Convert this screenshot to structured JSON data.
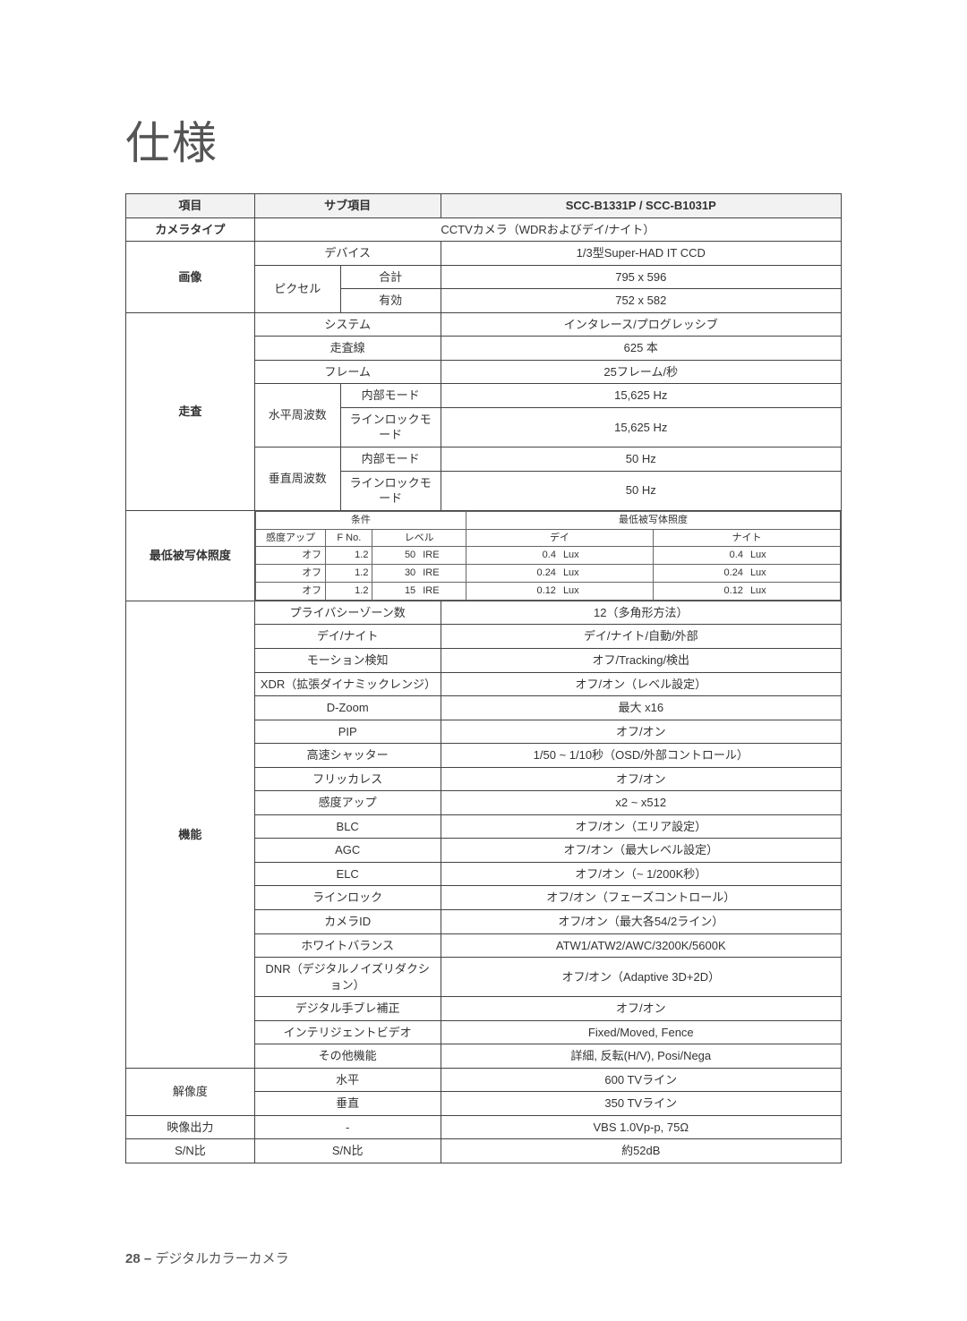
{
  "title": "仕様",
  "footer_page": "28 –",
  "footer_text": "デジタルカラーカメラ",
  "header": {
    "item": "項目",
    "sub_item": "サブ項目",
    "model": "SCC-B1331P / SCC-B1031P"
  },
  "col_widths": {
    "col1": "18%",
    "col2": "12%",
    "col3": "14%",
    "col4": "56%"
  },
  "camera_type": {
    "label": "カメラタイプ",
    "value": "CCTVカメラ（WDRおよびデイ/ナイト）"
  },
  "image": {
    "label": "画像",
    "device_label": "デバイス",
    "device_value": "1/3型Super-HAD IT CCD",
    "pixel_label": "ピクセル",
    "total_label": "合計",
    "total_value": "795 x 596",
    "effective_label": "有効",
    "effective_value": "752 x 582"
  },
  "scan": {
    "label": "走査",
    "system_label": "システム",
    "system_value": "インタレース/プログレッシブ",
    "lines_label": "走査線",
    "lines_value": "625 本",
    "frame_label": "フレーム",
    "frame_value": "25フレーム/秒",
    "hfreq_label": "水平周波数",
    "hfreq_internal_mode": "内部モード",
    "hfreq_internal_value": "15,625 Hz",
    "hfreq_linelock_mode": "ラインロックモード",
    "hfreq_linelock_value": "15,625 Hz",
    "vfreq_label": "垂直周波数",
    "vfreq_internal_mode": "内部モード",
    "vfreq_internal_value": "50 Hz",
    "vfreq_linelock_mode": "ラインロックモード",
    "vfreq_linelock_value": "50 Hz"
  },
  "min_illum": {
    "label": "最低被写体照度",
    "cond_label": "条件",
    "result_label": "最低被写体照度",
    "sens_up": "感度アップ",
    "fno": "F No.",
    "level": "レベル",
    "day": "デイ",
    "night": "ナイト",
    "rows": [
      {
        "sens": "オフ",
        "fno": "1.2",
        "lvl_n": "50",
        "lvl_u": "IRE",
        "day_n": "0.4",
        "day_u": "Lux",
        "night_n": "0.4",
        "night_u": "Lux"
      },
      {
        "sens": "オフ",
        "fno": "1.2",
        "lvl_n": "30",
        "lvl_u": "IRE",
        "day_n": "0.24",
        "day_u": "Lux",
        "night_n": "0.24",
        "night_u": "Lux"
      },
      {
        "sens": "オフ",
        "fno": "1.2",
        "lvl_n": "15",
        "lvl_u": "IRE",
        "day_n": "0.12",
        "day_u": "Lux",
        "night_n": "0.12",
        "night_u": "Lux"
      }
    ]
  },
  "functions": {
    "label": "機能",
    "rows": [
      {
        "param": "プライバシーゾーン数",
        "value": "12（多角形方法）"
      },
      {
        "param": "デイ/ナイト",
        "value": "デイ/ナイト/自動/外部"
      },
      {
        "param": "モーション検知",
        "value": "オフ/Tracking/検出"
      },
      {
        "param": "XDR（拡張ダイナミックレンジ）",
        "value": "オフ/オン（レベル設定）"
      },
      {
        "param": "D-Zoom",
        "value": "最大 x16"
      },
      {
        "param": "PIP",
        "value": "オフ/オン"
      },
      {
        "param": "高速シャッター",
        "value": "1/50 ~ 1/10秒（OSD/外部コントロール）"
      },
      {
        "param": "フリッカレス",
        "value": "オフ/オン"
      },
      {
        "param": "感度アップ",
        "value": "x2 ~ x512"
      },
      {
        "param": "BLC",
        "value": "オフ/オン（エリア設定）"
      },
      {
        "param": "AGC",
        "value": "オフ/オン（最大レベル設定）"
      },
      {
        "param": "ELC",
        "value": "オフ/オン（~ 1/200K秒）"
      },
      {
        "param": "ラインロック",
        "value": "オフ/オン（フェーズコントロール）"
      },
      {
        "param": "カメラID",
        "value": "オフ/オン（最大各54/2ライン）"
      },
      {
        "param": "ホワイトバランス",
        "value": "ATW1/ATW2/AWC/3200K/5600K"
      },
      {
        "param": "DNR（デジタルノイズリダクション）",
        "value": "オフ/オン（Adaptive 3D+2D）"
      },
      {
        "param": "デジタル手ブレ補正",
        "value": "オフ/オン"
      },
      {
        "param": "インテリジェントビデオ",
        "value": "Fixed/Moved, Fence"
      },
      {
        "param": "その他機能",
        "value": "詳細, 反転(H/V), Posi/Nega"
      }
    ]
  },
  "resolution": {
    "label": "解像度",
    "h_label": "水平",
    "h_value": "600 TVライン",
    "v_label": "垂直",
    "v_value": "350 TVライン"
  },
  "video_out": {
    "label": "映像出力",
    "param": "-",
    "value": "VBS 1.0Vp-p, 75Ω"
  },
  "sn": {
    "label": "S/N比",
    "param": "S/N比",
    "value": "約52dB"
  }
}
